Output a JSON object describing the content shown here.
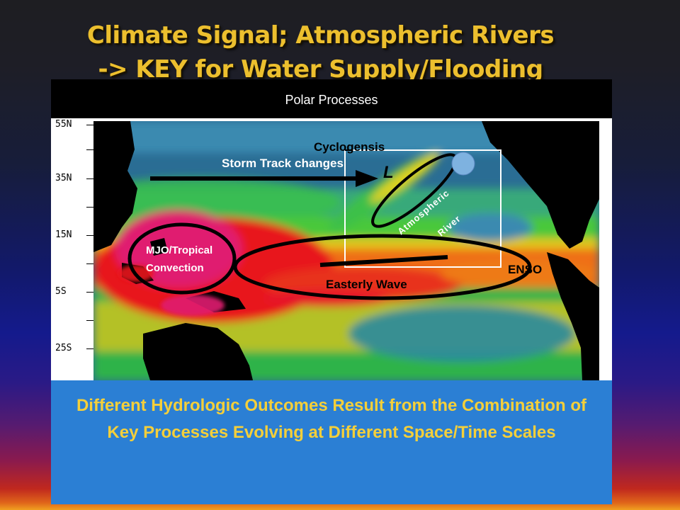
{
  "slide": {
    "title_line1": "Climate Signal; Atmospheric Rivers",
    "title_line2": "-> KEY for Water Supply/Flooding",
    "top_label": "Polar Processes",
    "map": {
      "latitudes": [
        "55N",
        "35N",
        "15N",
        "5S",
        "25S"
      ],
      "labels": {
        "storm_track": "Storm Track changes",
        "cyclogenesis": "Cyclogensis",
        "low": "L",
        "atmospheric_river": "Atmospheric River",
        "atmospheric": "Atmospheric",
        "river": "River",
        "mjo_line1": "MJO/Tropical",
        "mjo_line2": "Convection",
        "easterly_wave": "Easterly Wave",
        "enso": "ENSO"
      }
    },
    "bottom_text": "Different Hydrologic Outcomes Result from the Combination of Key Processes Evolving at Different Space/Time Scales",
    "colors": {
      "title": "#ecbf2e",
      "bottom_box": "#2b7fd4",
      "bottom_text": "#f4cf3a",
      "ocean": "#2a6d94",
      "land": "#000000"
    }
  }
}
